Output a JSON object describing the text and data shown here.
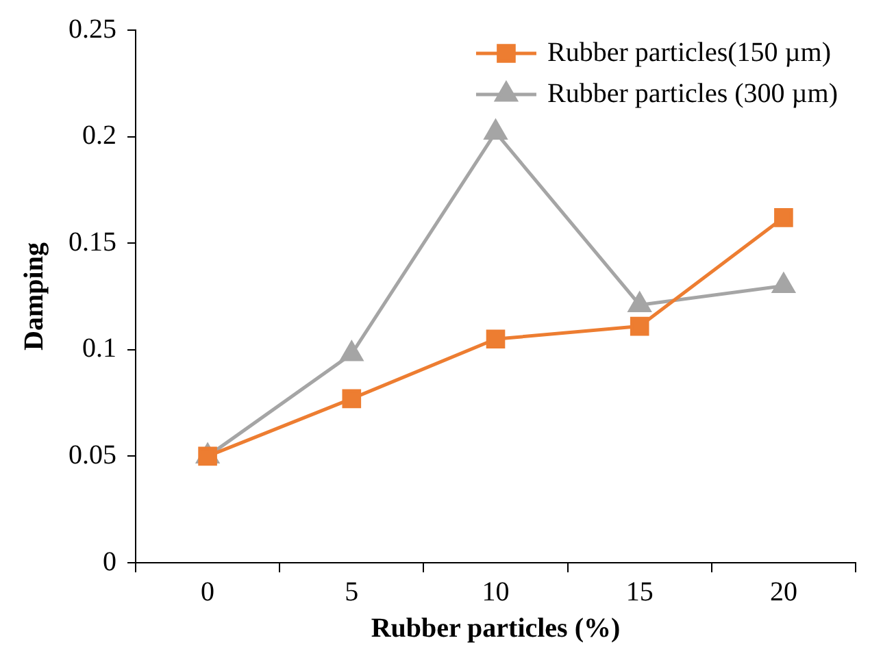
{
  "chart_data": {
    "type": "line",
    "xlabel": "Rubber particles (%)",
    "ylabel": "Damping",
    "categories": [
      "0",
      "5",
      "10",
      "15",
      "20"
    ],
    "series": [
      {
        "name": "Rubber particles(150 µm)",
        "color": "#ed7d31",
        "marker": "square",
        "values": [
          0.05,
          0.077,
          0.105,
          0.111,
          0.162
        ]
      },
      {
        "name": "Rubber particles (300 µm)",
        "color": "#a5a5a5",
        "marker": "triangle",
        "values": [
          0.05,
          0.098,
          0.202,
          0.121,
          0.13
        ]
      }
    ],
    "ylim": [
      0,
      0.25
    ],
    "yticks": [
      0,
      0.05,
      0.1,
      0.15,
      0.2,
      0.25
    ],
    "grid": false,
    "legend": "top right"
  }
}
